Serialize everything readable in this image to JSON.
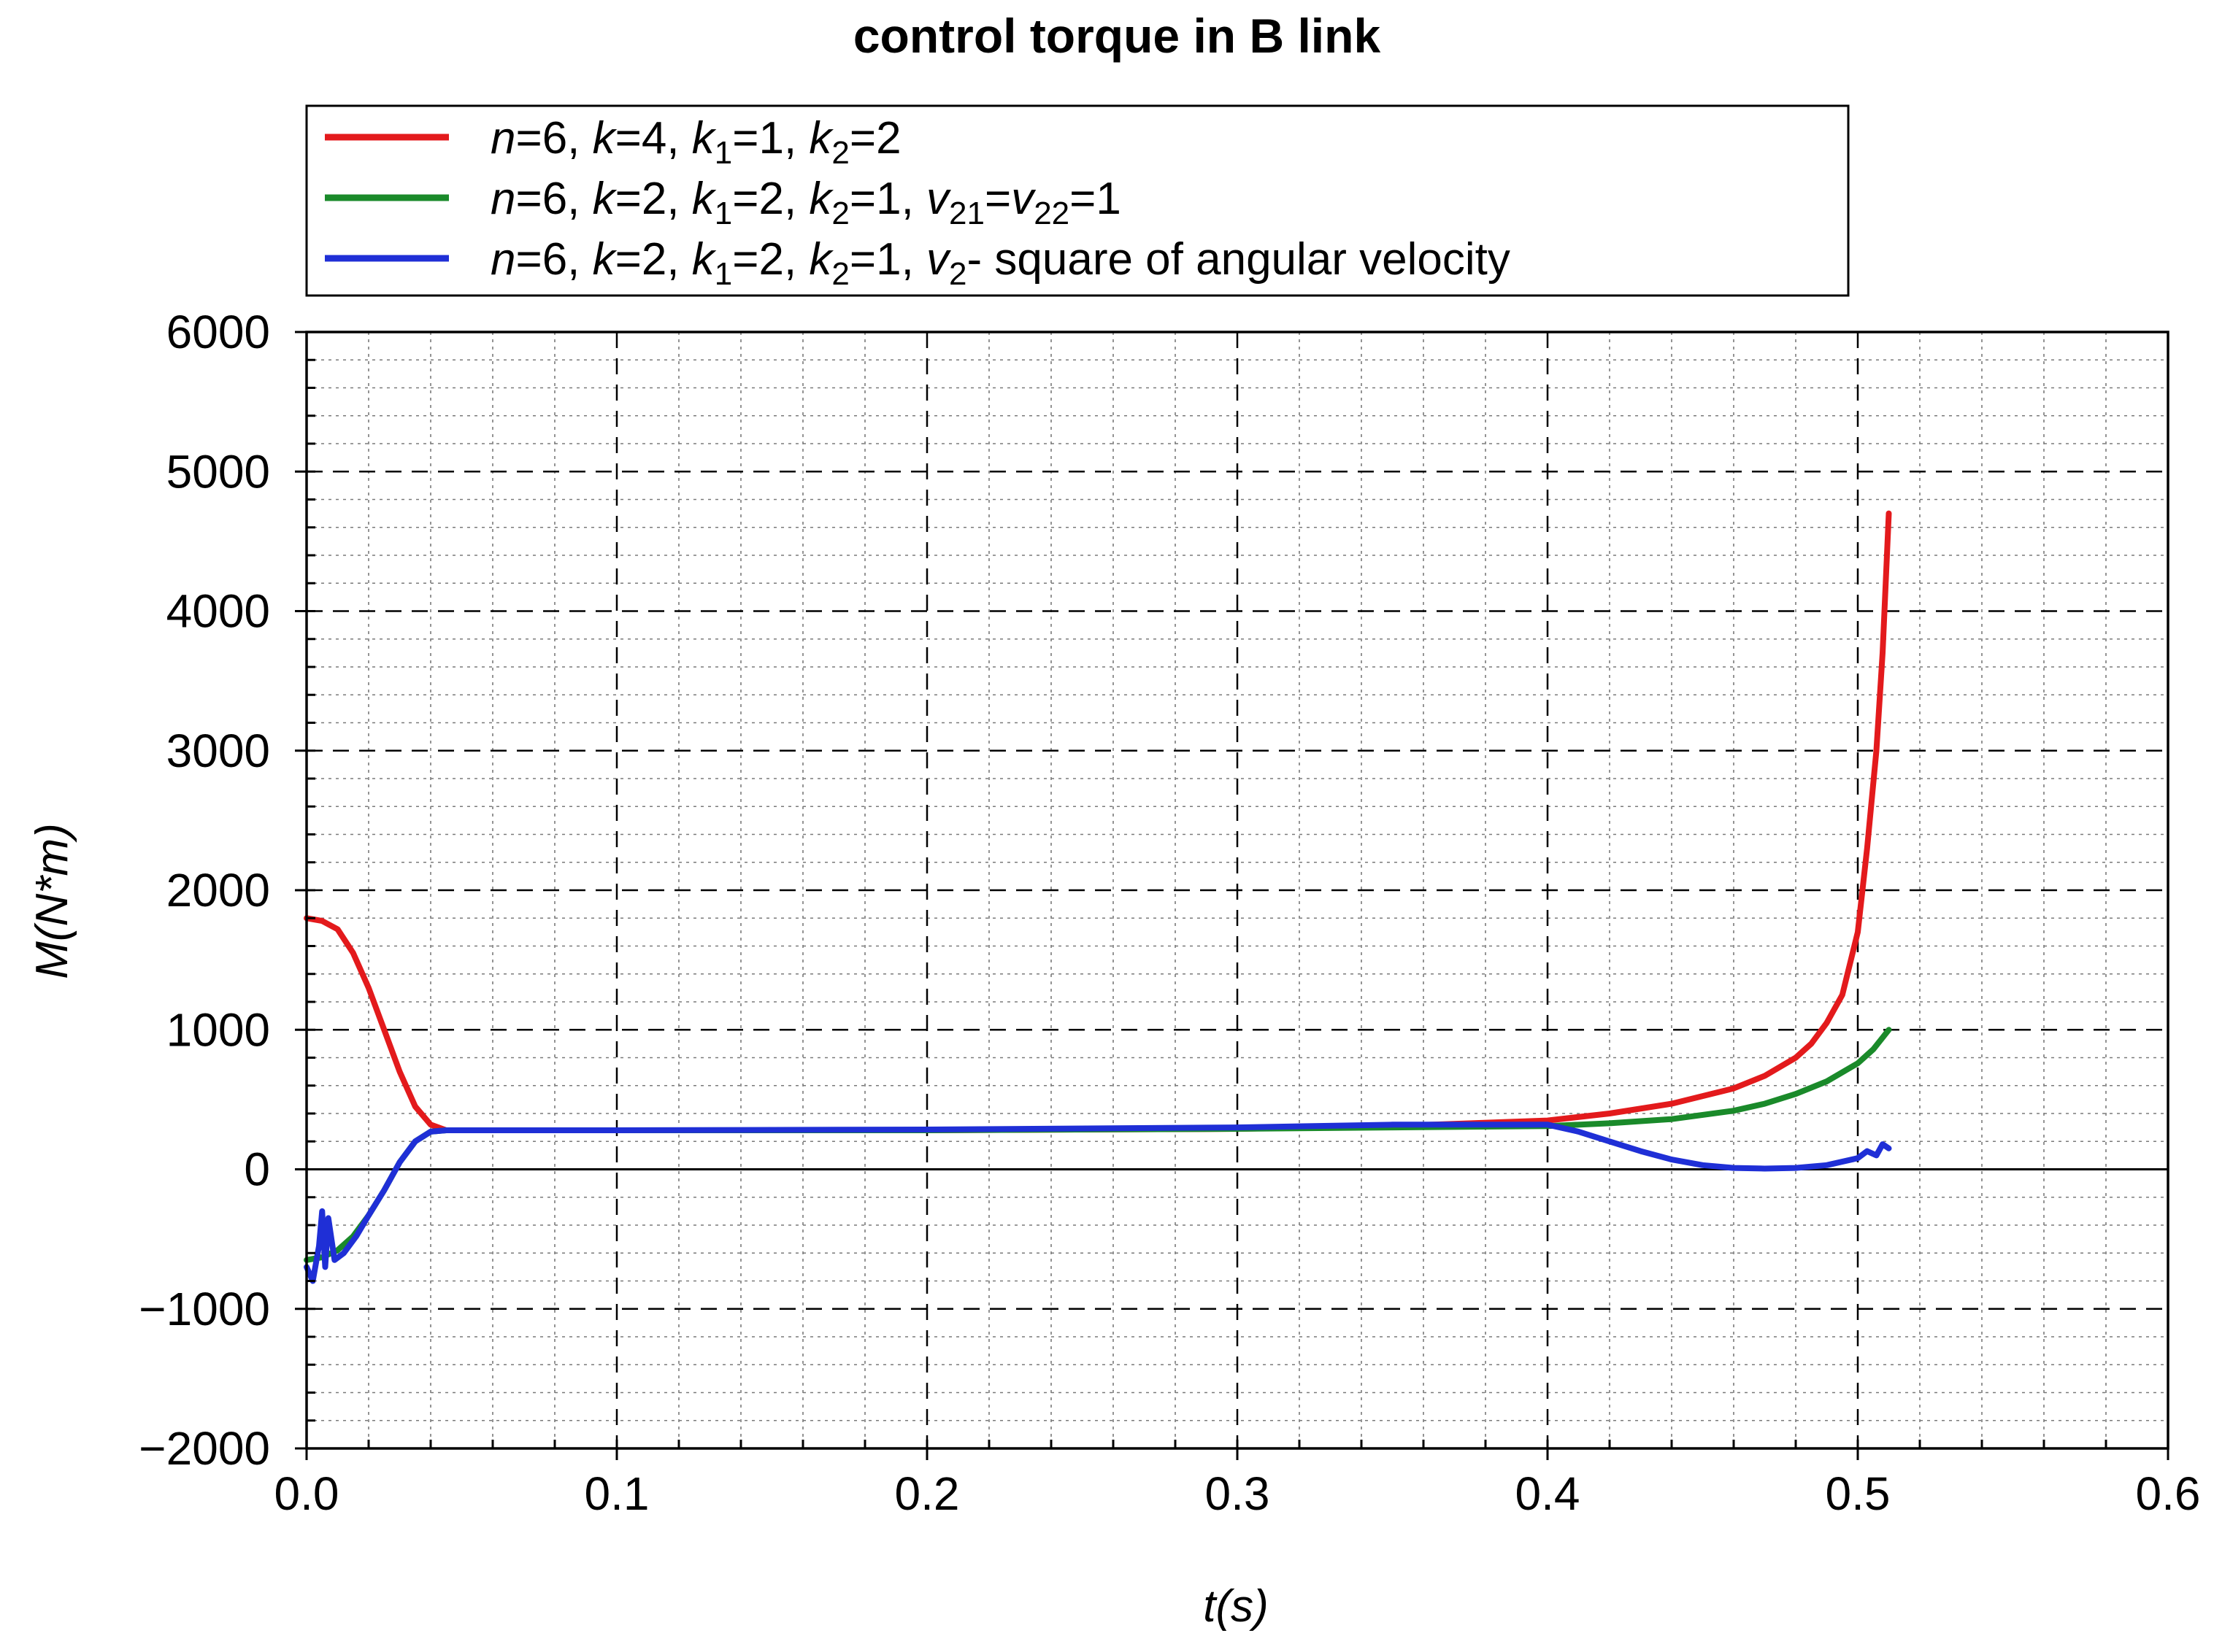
{
  "chart_data": {
    "type": "line",
    "title": "control torque in B link",
    "xlabel": "t(s)",
    "ylabel": "M(N*m)",
    "xlim": [
      0,
      0.6
    ],
    "ylim": [
      -2000,
      6000
    ],
    "xticks": [
      0.0,
      0.1,
      0.2,
      0.3,
      0.4,
      0.5,
      0.6
    ],
    "xtick_labels": [
      "0.0",
      "0.1",
      "0.2",
      "0.3",
      "0.4",
      "0.5",
      "0.6"
    ],
    "yticks": [
      -2000,
      -1000,
      0,
      1000,
      2000,
      3000,
      4000,
      5000,
      6000
    ],
    "ytick_labels": [
      "−2000",
      "−1000",
      "0",
      "1000",
      "2000",
      "3000",
      "4000",
      "5000",
      "6000"
    ],
    "grid": true,
    "legend_position": "top",
    "series": [
      {
        "legend_parts": [
          {
            "t": "n",
            "i": true
          },
          {
            "t": "=6, "
          },
          {
            "t": "k",
            "i": true
          },
          {
            "t": "=4, "
          },
          {
            "t": "k",
            "i": true
          },
          {
            "t": "1",
            "sub": true
          },
          {
            "t": "=1, "
          },
          {
            "t": "k",
            "i": true
          },
          {
            "t": "2",
            "sub": true
          },
          {
            "t": "=2"
          }
        ],
        "color": "#e31a1c",
        "x": [
          0.0,
          0.005,
          0.01,
          0.015,
          0.02,
          0.025,
          0.03,
          0.035,
          0.04,
          0.045,
          0.1,
          0.2,
          0.3,
          0.35,
          0.4,
          0.42,
          0.44,
          0.46,
          0.47,
          0.48,
          0.485,
          0.49,
          0.495,
          0.5,
          0.503,
          0.506,
          0.508,
          0.51
        ],
        "y": [
          1800,
          1780,
          1720,
          1550,
          1300,
          1000,
          700,
          450,
          320,
          280,
          280,
          280,
          290,
          310,
          350,
          400,
          470,
          580,
          670,
          800,
          900,
          1050,
          1250,
          1700,
          2300,
          3000,
          3700,
          4700
        ]
      },
      {
        "legend_parts": [
          {
            "t": "n",
            "i": true
          },
          {
            "t": "=6, "
          },
          {
            "t": "k",
            "i": true
          },
          {
            "t": "=2, "
          },
          {
            "t": "k",
            "i": true
          },
          {
            "t": "1",
            "sub": true
          },
          {
            "t": "=2, "
          },
          {
            "t": "k",
            "i": true
          },
          {
            "t": "2",
            "sub": true
          },
          {
            "t": "=1, "
          },
          {
            "t": "v",
            "i": true
          },
          {
            "t": "21",
            "sub": true
          },
          {
            "t": "="
          },
          {
            "t": "v",
            "i": true
          },
          {
            "t": "22",
            "sub": true
          },
          {
            "t": "=1"
          }
        ],
        "color": "#1a8a2a",
        "x": [
          0.0,
          0.005,
          0.01,
          0.015,
          0.02,
          0.025,
          0.03,
          0.035,
          0.04,
          0.045,
          0.1,
          0.2,
          0.3,
          0.35,
          0.4,
          0.42,
          0.44,
          0.46,
          0.47,
          0.48,
          0.49,
          0.5,
          0.505,
          0.51
        ],
        "y": [
          -650,
          -630,
          -580,
          -480,
          -330,
          -150,
          50,
          200,
          270,
          280,
          280,
          280,
          290,
          300,
          310,
          330,
          360,
          420,
          470,
          540,
          630,
          760,
          860,
          1000
        ]
      },
      {
        "legend_parts": [
          {
            "t": "n",
            "i": true
          },
          {
            "t": "=6, "
          },
          {
            "t": "k",
            "i": true
          },
          {
            "t": "=2, "
          },
          {
            "t": "k",
            "i": true
          },
          {
            "t": "1",
            "sub": true
          },
          {
            "t": "=2, "
          },
          {
            "t": "k",
            "i": true
          },
          {
            "t": "2",
            "sub": true
          },
          {
            "t": "=1, "
          },
          {
            "t": "v",
            "i": true
          },
          {
            "t": "2",
            "sub": true
          },
          {
            "t": "- square of angular velocity"
          }
        ],
        "color": "#1f2fd6",
        "x": [
          0.0,
          0.002,
          0.004,
          0.005,
          0.006,
          0.007,
          0.009,
          0.012,
          0.016,
          0.02,
          0.025,
          0.03,
          0.035,
          0.04,
          0.045,
          0.1,
          0.2,
          0.3,
          0.35,
          0.4,
          0.41,
          0.42,
          0.43,
          0.44,
          0.45,
          0.46,
          0.47,
          0.48,
          0.49,
          0.5,
          0.503,
          0.506,
          0.508,
          0.51
        ],
        "y": [
          -700,
          -800,
          -550,
          -300,
          -700,
          -350,
          -650,
          -600,
          -480,
          -330,
          -150,
          50,
          200,
          270,
          280,
          280,
          285,
          300,
          320,
          320,
          270,
          200,
          130,
          70,
          30,
          10,
          5,
          10,
          30,
          80,
          130,
          100,
          180,
          150
        ]
      }
    ]
  }
}
